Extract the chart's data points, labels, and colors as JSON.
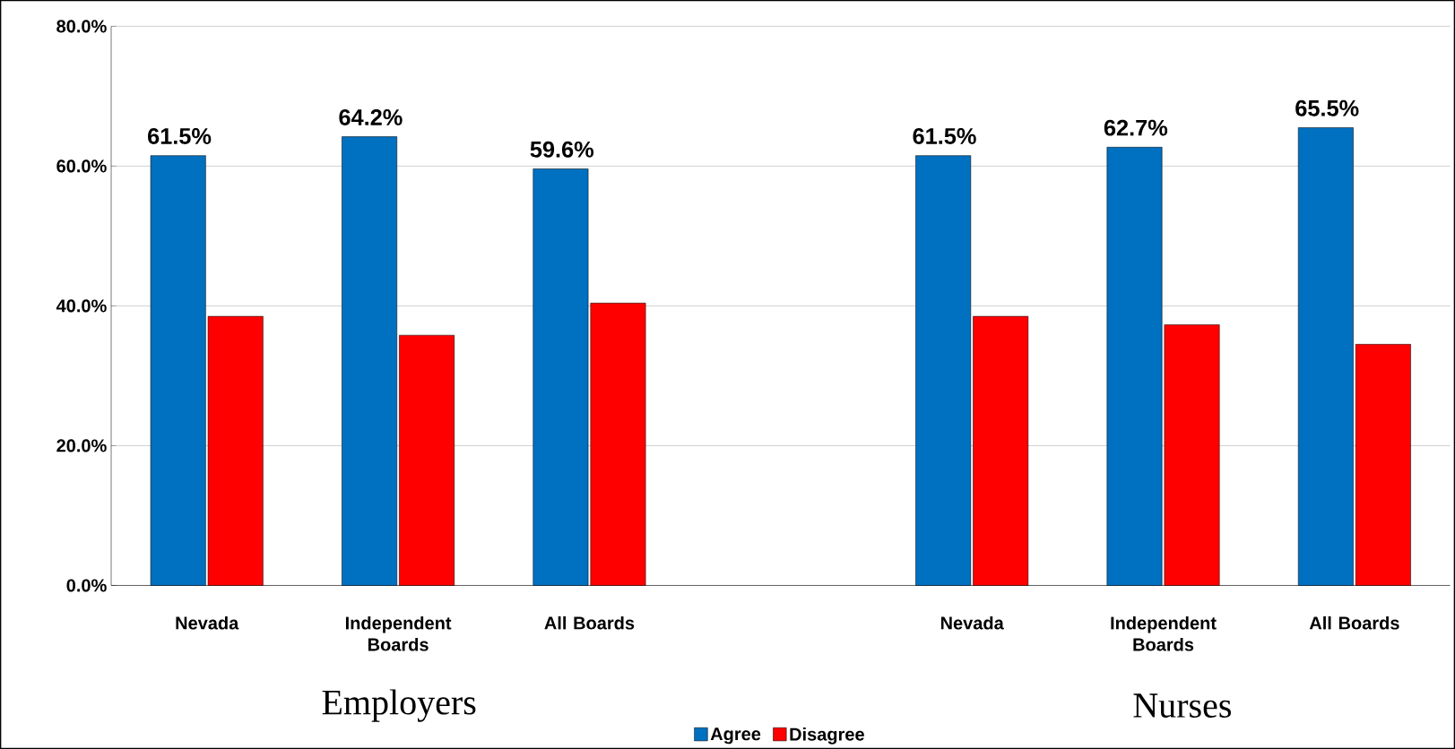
{
  "chart_data": {
    "type": "bar",
    "categories": [
      "Nevada",
      "Independent Boards",
      "All Boards",
      null,
      "Nevada",
      "Independent Boards",
      "All Boards"
    ],
    "series": [
      {
        "name": "Agree",
        "color": "#0070c0",
        "values": [
          61.5,
          64.2,
          59.6,
          null,
          61.5,
          62.7,
          65.5
        ],
        "value_labels": [
          "61.5%",
          "64.2%",
          "59.6%",
          null,
          "61.5%",
          "62.7%",
          "65.5%"
        ]
      },
      {
        "name": "Disagree",
        "color": "#ff0000",
        "values": [
          38.5,
          35.8,
          40.4,
          null,
          38.5,
          37.3,
          34.5
        ]
      }
    ],
    "ylim": [
      0,
      80
    ],
    "yticks": [
      {
        "value": 0,
        "label": "0.0%"
      },
      {
        "value": 20,
        "label": "20.0%"
      },
      {
        "value": 40,
        "label": "40.0%"
      },
      {
        "value": 60,
        "label": "60.0%"
      },
      {
        "value": 80,
        "label": "80.0%"
      }
    ],
    "grid": "y",
    "legend": "bottom",
    "annotations": [
      "Employers",
      "Nurses"
    ]
  }
}
